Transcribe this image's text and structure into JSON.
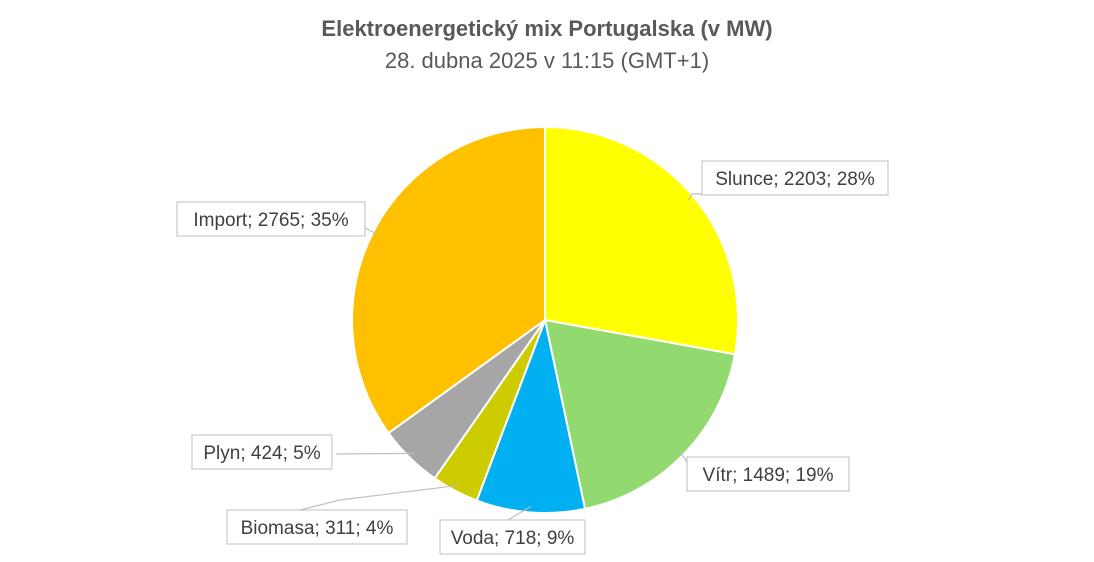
{
  "chart_data": {
    "type": "pie",
    "title": "Elektroenergetický mix Portugalska (v MW)",
    "subtitle": "28. dubna 2025 v 11:15 (GMT+1)",
    "slices": [
      {
        "name": "Slunce",
        "value": 2203,
        "percent": "28%",
        "color": "#FFFF00",
        "label": "Slunce; 2203; 28%"
      },
      {
        "name": "Vítr",
        "value": 1489,
        "percent": "19%",
        "color": "#92D96F",
        "label": "Vítr; 1489; 19%"
      },
      {
        "name": "Voda",
        "value": 718,
        "percent": "9%",
        "color": "#00B0F0",
        "label": "Voda; 718; 9%"
      },
      {
        "name": "Biomasa",
        "value": 311,
        "percent": "4%",
        "color": "#CCCC00",
        "label": "Biomasa; 311; 4%"
      },
      {
        "name": "Plyn",
        "value": 424,
        "percent": "5%",
        "color": "#A6A6A6",
        "label": "Plyn; 424; 5%"
      },
      {
        "name": "Import",
        "value": 2765,
        "percent": "35%",
        "color": "#FFC000",
        "label": "Import; 2765; 35%"
      }
    ],
    "start": "12 o'clock",
    "direction": "clockwise",
    "legend": "none"
  }
}
